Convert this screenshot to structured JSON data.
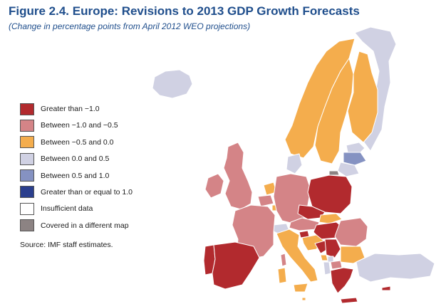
{
  "header": {
    "title": "Figure 2.4.  Europe: Revisions to 2013 GDP Growth Forecasts",
    "subtitle": "(Change in percentage points from April 2012 WEO projections)"
  },
  "legend": {
    "items": [
      {
        "label": "Greater than −1.0",
        "color": "#b22a2e"
      },
      {
        "label": "Between −1.0 and −0.5",
        "color": "#d48487"
      },
      {
        "label": "Between −0.5 and 0.0",
        "color": "#f4ad4d"
      },
      {
        "label": "Between 0.0 and 0.5",
        "color": "#d0d1e3"
      },
      {
        "label": "Between 0.5 and 1.0",
        "color": "#8592c2"
      },
      {
        "label": "Greater than or equal to 1.0",
        "color": "#2b3f8e"
      },
      {
        "label": "Insufficient data",
        "color": "#ffffff"
      },
      {
        "label": "Covered in a different map",
        "color": "#8c8383"
      }
    ]
  },
  "source": "Source: IMF staff estimates.",
  "map": {
    "regions": [
      {
        "name": "iceland",
        "cat": 3
      },
      {
        "name": "norway",
        "cat": 2
      },
      {
        "name": "sweden",
        "cat": 2
      },
      {
        "name": "finland",
        "cat": 2
      },
      {
        "name": "russia-north",
        "cat": 3
      },
      {
        "name": "estonia",
        "cat": 3
      },
      {
        "name": "latvia",
        "cat": 4
      },
      {
        "name": "lithuania",
        "cat": 3
      },
      {
        "name": "belarus",
        "cat": 6
      },
      {
        "name": "ukraine",
        "cat": 6
      },
      {
        "name": "russia-kaliningrad",
        "cat": 7
      },
      {
        "name": "ireland",
        "cat": 1
      },
      {
        "name": "united-kingdom",
        "cat": 1
      },
      {
        "name": "denmark",
        "cat": 3
      },
      {
        "name": "netherlands",
        "cat": 2
      },
      {
        "name": "belgium",
        "cat": 1
      },
      {
        "name": "luxembourg",
        "cat": 2
      },
      {
        "name": "germany",
        "cat": 1
      },
      {
        "name": "poland",
        "cat": 0
      },
      {
        "name": "czech-republic",
        "cat": 0
      },
      {
        "name": "slovakia",
        "cat": 2
      },
      {
        "name": "austria",
        "cat": 1
      },
      {
        "name": "switzerland",
        "cat": 3
      },
      {
        "name": "hungary",
        "cat": 0
      },
      {
        "name": "slovenia",
        "cat": 0
      },
      {
        "name": "croatia",
        "cat": 2
      },
      {
        "name": "romania",
        "cat": 1
      },
      {
        "name": "moldova",
        "cat": 6
      },
      {
        "name": "france",
        "cat": 1
      },
      {
        "name": "portugal",
        "cat": 0
      },
      {
        "name": "spain",
        "cat": 0
      },
      {
        "name": "italy",
        "cat": 2
      },
      {
        "name": "sardinia",
        "cat": 2
      },
      {
        "name": "sicily",
        "cat": 2
      },
      {
        "name": "corsica",
        "cat": 1
      },
      {
        "name": "bosnia",
        "cat": 0
      },
      {
        "name": "serbia",
        "cat": 0
      },
      {
        "name": "montenegro",
        "cat": 2
      },
      {
        "name": "kosovo",
        "cat": 3
      },
      {
        "name": "albania",
        "cat": 3
      },
      {
        "name": "macedonia",
        "cat": 1
      },
      {
        "name": "bulgaria",
        "cat": 2
      },
      {
        "name": "greece",
        "cat": 0
      },
      {
        "name": "crete",
        "cat": 0
      },
      {
        "name": "turkey",
        "cat": 3
      },
      {
        "name": "cyprus",
        "cat": 0
      },
      {
        "name": "malta",
        "cat": 2
      }
    ]
  }
}
